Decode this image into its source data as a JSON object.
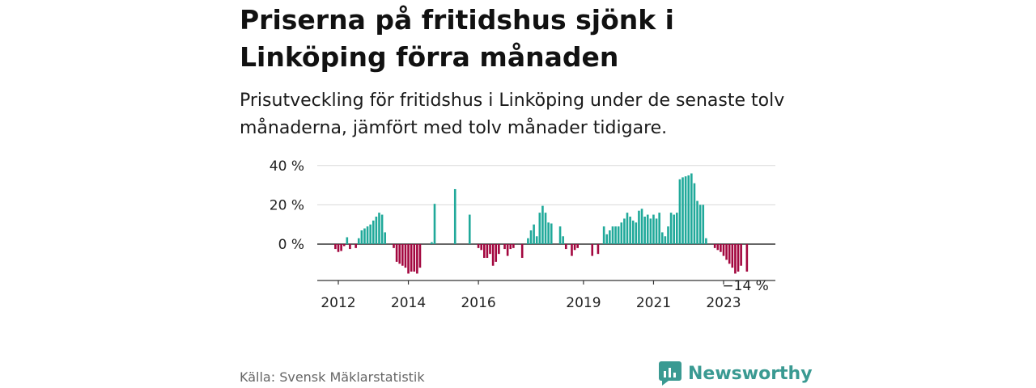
{
  "header": {
    "title": "Priserna på fritidshus sjönk i Linköping förra månaden",
    "subtitle": "Prisutveckling för fritidshus i Linköping under de senaste tolv månaderna, jämfört med tolv månader tidigare."
  },
  "footer": {
    "source": "Källa: Svensk Mäklarstatistik",
    "brand": "Newsworthy"
  },
  "colors": {
    "positive": "#20a99a",
    "negative": "#a3073f",
    "grid": "#d9d9d9",
    "axis": "#333333",
    "brand": "#3a9a92"
  },
  "chart_data": {
    "type": "bar",
    "ylim": [
      -18,
      40
    ],
    "yticks": [
      {
        "value": 40,
        "label": "40 %"
      },
      {
        "value": 20,
        "label": "20 %"
      },
      {
        "value": 0,
        "label": "0 %"
      }
    ],
    "xticks": [
      {
        "label": "2012",
        "at": "2012-01"
      },
      {
        "label": "2014",
        "at": "2014-01"
      },
      {
        "label": "2016",
        "at": "2016-01"
      },
      {
        "label": "2019",
        "at": "2019-01"
      },
      {
        "label": "2021",
        "at": "2021-01"
      },
      {
        "label": "2023",
        "at": "2023-01"
      }
    ],
    "annotation": {
      "label": "−14 %",
      "at": "2023-09"
    },
    "series": [
      {
        "points": [
          {
            "x": "2011-12",
            "y": -2.5
          },
          {
            "x": "2012-01",
            "y": -4
          },
          {
            "x": "2012-02",
            "y": -3.5
          },
          {
            "x": "2012-03",
            "y": -1
          },
          {
            "x": "2012-04",
            "y": 3.5
          },
          {
            "x": "2012-05",
            "y": -2.5
          },
          {
            "x": "2012-06",
            "y": 0
          },
          {
            "x": "2012-07",
            "y": -2
          },
          {
            "x": "2012-08",
            "y": 3
          },
          {
            "x": "2012-09",
            "y": 7
          },
          {
            "x": "2012-10",
            "y": 8
          },
          {
            "x": "2012-11",
            "y": 9
          },
          {
            "x": "2012-12",
            "y": 10
          },
          {
            "x": "2013-01",
            "y": 12
          },
          {
            "x": "2013-02",
            "y": 14
          },
          {
            "x": "2013-03",
            "y": 16
          },
          {
            "x": "2013-04",
            "y": 15
          },
          {
            "x": "2013-05",
            "y": 6
          },
          {
            "x": "2013-06",
            "y": 0
          },
          {
            "x": "2013-07",
            "y": 0
          },
          {
            "x": "2013-08",
            "y": -2
          },
          {
            "x": "2013-09",
            "y": -9
          },
          {
            "x": "2013-10",
            "y": -10
          },
          {
            "x": "2013-11",
            "y": -11
          },
          {
            "x": "2013-12",
            "y": -12
          },
          {
            "x": "2014-01",
            "y": -15
          },
          {
            "x": "2014-02",
            "y": -14
          },
          {
            "x": "2014-03",
            "y": -14
          },
          {
            "x": "2014-04",
            "y": -15
          },
          {
            "x": "2014-05",
            "y": -12
          },
          {
            "x": "2014-06",
            "y": 0
          },
          {
            "x": "2014-07",
            "y": 0
          },
          {
            "x": "2014-08",
            "y": 0
          },
          {
            "x": "2014-09",
            "y": 1
          },
          {
            "x": "2014-10",
            "y": 20.5
          },
          {
            "x": "2015-05",
            "y": 28
          },
          {
            "x": "2015-10",
            "y": 15
          },
          {
            "x": "2016-01",
            "y": -2
          },
          {
            "x": "2016-02",
            "y": -3
          },
          {
            "x": "2016-03",
            "y": -7
          },
          {
            "x": "2016-04",
            "y": -7
          },
          {
            "x": "2016-05",
            "y": -5
          },
          {
            "x": "2016-06",
            "y": -11
          },
          {
            "x": "2016-07",
            "y": -9
          },
          {
            "x": "2016-08",
            "y": -5
          },
          {
            "x": "2016-09",
            "y": 0
          },
          {
            "x": "2016-10",
            "y": -2.5
          },
          {
            "x": "2016-11",
            "y": -6
          },
          {
            "x": "2016-12",
            "y": -2.5
          },
          {
            "x": "2017-01",
            "y": -2
          },
          {
            "x": "2017-04",
            "y": -7
          },
          {
            "x": "2017-06",
            "y": 3
          },
          {
            "x": "2017-07",
            "y": 7
          },
          {
            "x": "2017-08",
            "y": 10
          },
          {
            "x": "2017-09",
            "y": 4
          },
          {
            "x": "2017-10",
            "y": 16
          },
          {
            "x": "2017-11",
            "y": 19.5
          },
          {
            "x": "2017-12",
            "y": 16
          },
          {
            "x": "2018-01",
            "y": 11
          },
          {
            "x": "2018-02",
            "y": 10.5
          },
          {
            "x": "2018-05",
            "y": 9
          },
          {
            "x": "2018-06",
            "y": 4
          },
          {
            "x": "2018-07",
            "y": -2.5
          },
          {
            "x": "2018-09",
            "y": -6
          },
          {
            "x": "2018-10",
            "y": -3
          },
          {
            "x": "2018-11",
            "y": -2
          },
          {
            "x": "2019-04",
            "y": -6
          },
          {
            "x": "2019-06",
            "y": -5
          },
          {
            "x": "2019-08",
            "y": 9
          },
          {
            "x": "2019-09",
            "y": 5
          },
          {
            "x": "2019-10",
            "y": 7
          },
          {
            "x": "2019-11",
            "y": 9
          },
          {
            "x": "2019-12",
            "y": 9
          },
          {
            "x": "2020-01",
            "y": 9
          },
          {
            "x": "2020-02",
            "y": 11
          },
          {
            "x": "2020-03",
            "y": 13
          },
          {
            "x": "2020-04",
            "y": 16
          },
          {
            "x": "2020-05",
            "y": 14
          },
          {
            "x": "2020-06",
            "y": 12
          },
          {
            "x": "2020-07",
            "y": 11
          },
          {
            "x": "2020-08",
            "y": 17
          },
          {
            "x": "2020-09",
            "y": 18
          },
          {
            "x": "2020-10",
            "y": 14
          },
          {
            "x": "2020-11",
            "y": 15
          },
          {
            "x": "2020-12",
            "y": 13
          },
          {
            "x": "2021-01",
            "y": 15
          },
          {
            "x": "2021-02",
            "y": 13
          },
          {
            "x": "2021-03",
            "y": 16
          },
          {
            "x": "2021-04",
            "y": 6
          },
          {
            "x": "2021-05",
            "y": 4
          },
          {
            "x": "2021-06",
            "y": 9
          },
          {
            "x": "2021-07",
            "y": 16
          },
          {
            "x": "2021-08",
            "y": 15
          },
          {
            "x": "2021-09",
            "y": 16
          },
          {
            "x": "2021-10",
            "y": 33
          },
          {
            "x": "2021-11",
            "y": 34
          },
          {
            "x": "2021-12",
            "y": 34.5
          },
          {
            "x": "2022-01",
            "y": 35
          },
          {
            "x": "2022-02",
            "y": 36
          },
          {
            "x": "2022-03",
            "y": 31
          },
          {
            "x": "2022-04",
            "y": 22
          },
          {
            "x": "2022-05",
            "y": 20
          },
          {
            "x": "2022-06",
            "y": 20
          },
          {
            "x": "2022-07",
            "y": 3
          },
          {
            "x": "2022-08",
            "y": 0
          },
          {
            "x": "2022-09",
            "y": 0
          },
          {
            "x": "2022-10",
            "y": -2
          },
          {
            "x": "2022-11",
            "y": -3
          },
          {
            "x": "2022-12",
            "y": -4
          },
          {
            "x": "2023-01",
            "y": -6
          },
          {
            "x": "2023-02",
            "y": -8
          },
          {
            "x": "2023-03",
            "y": -10
          },
          {
            "x": "2023-04",
            "y": -12
          },
          {
            "x": "2023-05",
            "y": -15
          },
          {
            "x": "2023-06",
            "y": -14
          },
          {
            "x": "2023-07",
            "y": -11
          },
          {
            "x": "2023-09",
            "y": -14
          }
        ]
      }
    ]
  }
}
